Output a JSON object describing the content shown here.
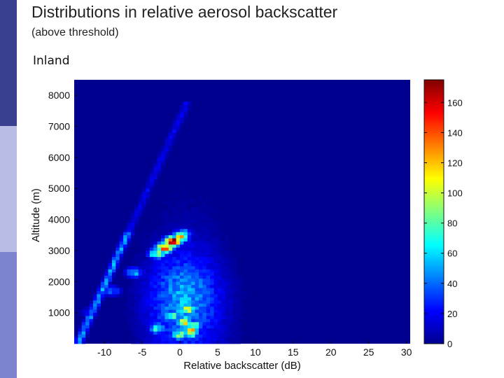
{
  "slide": {
    "title": "Distributions in relative aerosol backscatter",
    "subtitle": "(above threshold)",
    "panel_label": "Inland"
  },
  "chart_data": {
    "type": "heatmap",
    "title": "",
    "xlabel": "Relative backscatter (dB)",
    "ylabel": "Altitude (m)",
    "xlim": [
      -14,
      30.5
    ],
    "ylim": [
      0,
      8500
    ],
    "x_ticks": [
      -10,
      -5,
      0,
      5,
      10,
      15,
      20,
      25,
      30
    ],
    "y_ticks": [
      1000,
      2000,
      3000,
      4000,
      5000,
      6000,
      7000,
      8000
    ],
    "colorbar": {
      "ticks": [
        0,
        20,
        40,
        60,
        80,
        100,
        120,
        140,
        160
      ],
      "range": [
        0,
        175
      ],
      "colormap": "jet"
    },
    "colors": {
      "background": "#00008f"
    },
    "features": [
      {
        "name": "leading-edge-ridge",
        "points": [
          [
            -12,
            1000
          ],
          [
            -9,
            1700
          ],
          [
            -6,
            2300
          ],
          [
            -3,
            2900
          ],
          [
            -2,
            3100
          ],
          [
            -1,
            3300
          ],
          [
            0,
            3450
          ],
          [
            0.5,
            3550
          ]
        ],
        "values": [
          20,
          40,
          55,
          90,
          150,
          170,
          110,
          60
        ]
      },
      {
        "name": "lower-core",
        "points": [
          [
            -3,
            500
          ],
          [
            -1,
            900
          ],
          [
            0.5,
            700
          ],
          [
            1,
            1100
          ],
          [
            2,
            600
          ],
          [
            0,
            300
          ],
          [
            1.5,
            400
          ]
        ],
        "values": [
          70,
          90,
          120,
          100,
          80,
          90,
          130
        ]
      }
    ]
  }
}
